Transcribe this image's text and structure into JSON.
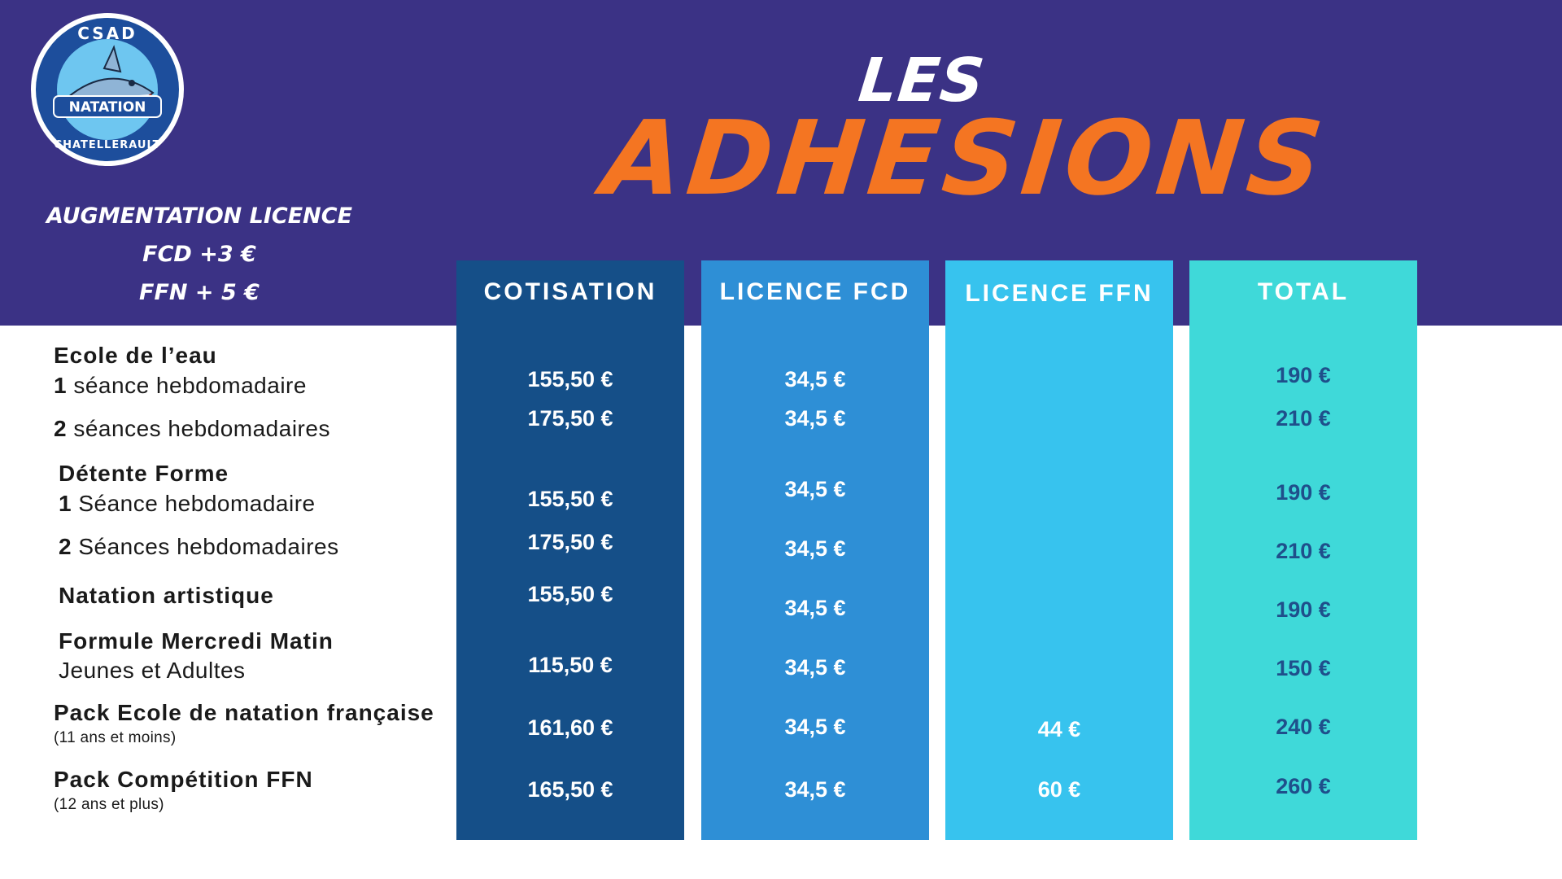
{
  "header": {
    "title_small": "LES",
    "title_main": "ADHESIONS",
    "logo": {
      "top_text": "CSAD",
      "center_text": "NATATION",
      "bottom_text": "CHATELLERAULT",
      "icon": "shark-icon"
    }
  },
  "notice": {
    "line1": "AUGMENTATION LICENCE",
    "line2": "FCD +3 €",
    "line3": "FFN + 5 €"
  },
  "colors": {
    "banner": "#3b3285",
    "title_accent": "#f47522",
    "col_cotisation": "#154f88",
    "col_fcd": "#2e8fd6",
    "col_ffn": "#37c3ee",
    "col_total": "#3fd9d9",
    "total_text": "#1f4f8b"
  },
  "columns": [
    {
      "key": "cotisation",
      "label": "COTISATION"
    },
    {
      "key": "fcd",
      "label": "LICENCE FCD"
    },
    {
      "key": "ffn",
      "label": "LICENCE FFN"
    },
    {
      "key": "total",
      "label": "TOTAL"
    }
  ],
  "labels": {
    "ecole_title": "Ecole de l’eau",
    "ecole_1_num": "1",
    "ecole_1_text": " séance hebdomadaire",
    "ecole_2_num": "2",
    "ecole_2_text": " séances hebdomadaires",
    "detente_title": "Détente Forme",
    "detente_1_num": "1",
    "detente_1_text": " Séance hebdomadaire",
    "detente_2_num": "2",
    "detente_2_text": " Séances hebdomadaires",
    "artistique": "Natation artistique",
    "mercredi_title": "Formule Mercredi Matin",
    "mercredi_sub": "Jeunes et Adultes",
    "pack_enf_title": "Pack  Ecole de natation française",
    "pack_enf_sub": "(11 ans et moins)",
    "pack_comp_title": "Pack  Compétition FFN",
    "pack_comp_sub": "(12 ans et plus)"
  },
  "values": {
    "cotisation": [
      "155,50 €",
      "175,50 €",
      "155,50 €",
      "175,50 €",
      "155,50 €",
      "115,50 €",
      "161,60 €",
      "165,50 €"
    ],
    "fcd": [
      "34,5 €",
      "34,5 €",
      "34,5 €",
      "34,5 €",
      "34,5 €",
      "34,5 €",
      "34,5 €",
      "34,5 €"
    ],
    "ffn": [
      "44 €",
      "60 €"
    ],
    "total": [
      "190 €",
      "210 €",
      "190 €",
      "210 €",
      "190 €",
      "150 €",
      "240 €",
      "260 €"
    ]
  }
}
